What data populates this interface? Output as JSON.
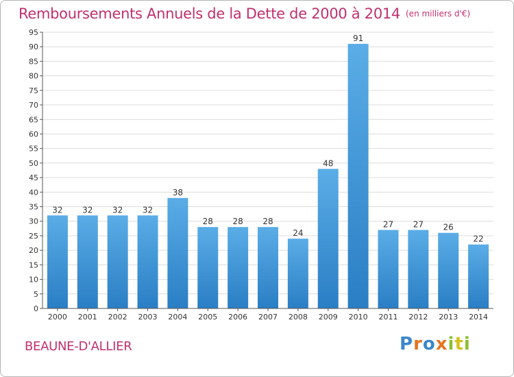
{
  "title": "Remboursements Annuels de la Dette de 2000 à 2014",
  "unit": "(en milliers d'€)",
  "commune": "BEAUNE-D'ALLIER",
  "logo": [
    "P",
    "r",
    "o",
    "x",
    "i",
    "t",
    "i"
  ],
  "colors": {
    "accent": "#c0306e",
    "bar_top": "#5aade6",
    "bar_bottom": "#2a7ec4",
    "grid": "#dcdcdc"
  },
  "chart_data": {
    "type": "bar",
    "title": "Remboursements Annuels de la Dette de 2000 à 2014",
    "xlabel": "",
    "ylabel": "",
    "ylim": [
      0,
      95
    ],
    "yticks": [
      0,
      5,
      10,
      15,
      20,
      25,
      30,
      35,
      40,
      45,
      50,
      55,
      60,
      65,
      70,
      75,
      80,
      85,
      90,
      95
    ],
    "grid": true,
    "categories": [
      "2000",
      "2001",
      "2002",
      "2003",
      "2004",
      "2005",
      "2006",
      "2007",
      "2008",
      "2009",
      "2010",
      "2011",
      "2012",
      "2013",
      "2014"
    ],
    "values": [
      32,
      32,
      32,
      32,
      38,
      28,
      28,
      28,
      24,
      48,
      91,
      27,
      27,
      26,
      22
    ]
  }
}
